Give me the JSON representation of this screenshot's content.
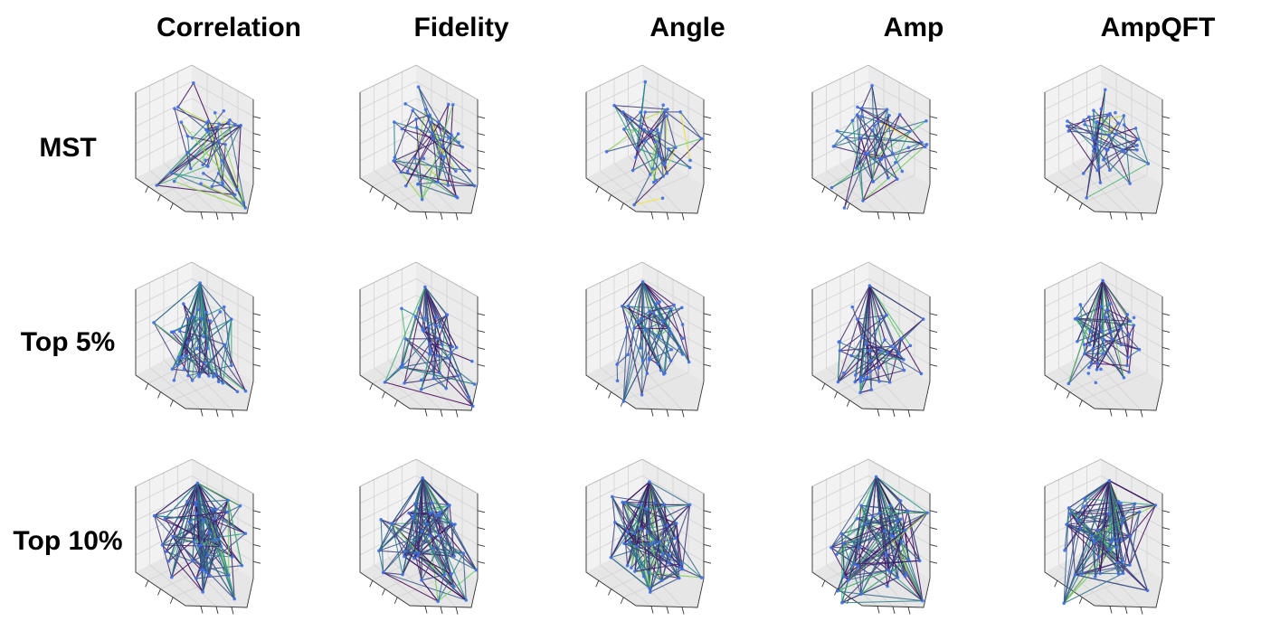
{
  "chart_data": {
    "type": "3d-network-grid",
    "title": "",
    "columns": [
      "Correlation",
      "Fidelity",
      "Angle",
      "Amp",
      "AmpQFT"
    ],
    "rows": [
      "MST",
      "Top 5%",
      "Top 10%"
    ],
    "node_color": "#3f6fe6",
    "edge_colormap": [
      "#440154",
      "#3b528b",
      "#21918c",
      "#5ec962",
      "#fde725"
    ],
    "axes": {
      "tick_labels": "hidden",
      "grid": true,
      "projection": "3d"
    },
    "panels": [
      {
        "row": "MST",
        "column": "Correlation",
        "edges": 59,
        "seed": 11
      },
      {
        "row": "MST",
        "column": "Fidelity",
        "edges": 59,
        "seed": 12
      },
      {
        "row": "MST",
        "column": "Angle",
        "edges": 59,
        "seed": 13
      },
      {
        "row": "MST",
        "column": "Amp",
        "edges": 59,
        "seed": 14
      },
      {
        "row": "MST",
        "column": "AmpQFT",
        "edges": 59,
        "seed": 15
      },
      {
        "row": "Top 5%",
        "column": "Correlation",
        "edges": 90,
        "seed": 21
      },
      {
        "row": "Top 5%",
        "column": "Fidelity",
        "edges": 90,
        "seed": 22
      },
      {
        "row": "Top 5%",
        "column": "Angle",
        "edges": 90,
        "seed": 23
      },
      {
        "row": "Top 5%",
        "column": "Amp",
        "edges": 90,
        "seed": 24
      },
      {
        "row": "Top 5%",
        "column": "AmpQFT",
        "edges": 90,
        "seed": 25
      },
      {
        "row": "Top 10%",
        "column": "Correlation",
        "edges": 180,
        "seed": 31
      },
      {
        "row": "Top 10%",
        "column": "Fidelity",
        "edges": 180,
        "seed": 32
      },
      {
        "row": "Top 10%",
        "column": "Angle",
        "edges": 180,
        "seed": 33
      },
      {
        "row": "Top 10%",
        "column": "Amp",
        "edges": 180,
        "seed": 34
      },
      {
        "row": "Top 10%",
        "column": "AmpQFT",
        "edges": 180,
        "seed": 35
      }
    ]
  }
}
